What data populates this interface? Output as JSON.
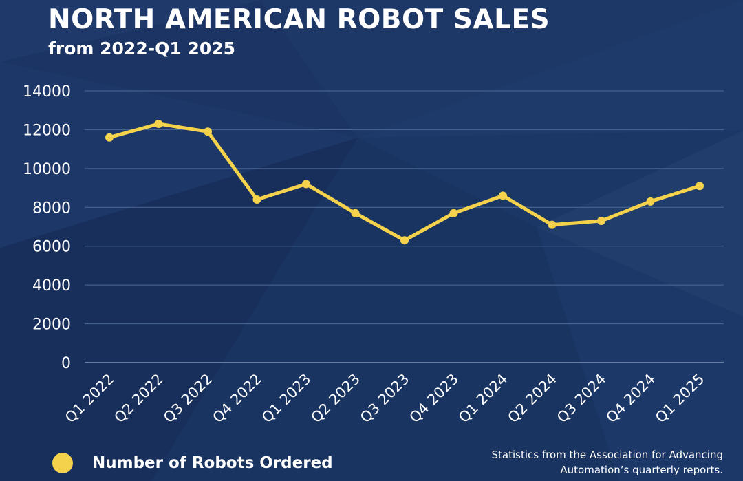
{
  "header": {
    "title": "NORTH AMERICAN ROBOT SALES",
    "subtitle": "from 2022-Q1 2025"
  },
  "footer": {
    "source_line1": "Statistics from the Association for Advancing",
    "source_line2": "Automation’s quarterly reports."
  },
  "colors": {
    "background": "#1b3463",
    "line": "#f5d24b",
    "grid": "#4d6a98",
    "text": "#ffffff"
  },
  "chart_data": {
    "type": "line",
    "title": "NORTH AMERICAN ROBOT SALES",
    "subtitle": "from 2022-Q1 2025",
    "categories": [
      "Q1 2022",
      "Q2 2022",
      "Q3 2022",
      "Q4 2022",
      "Q1 2023",
      "Q2 2023",
      "Q3 2023",
      "Q4 2023",
      "Q1 2024",
      "Q2 2024",
      "Q3 2024",
      "Q4 2024",
      "Q1 2025"
    ],
    "series": [
      {
        "name": "Number of Robots Ordered",
        "values": [
          11600,
          12300,
          11900,
          8400,
          9200,
          7700,
          6300,
          7700,
          8600,
          7100,
          7300,
          8300,
          9100
        ]
      }
    ],
    "ylim": [
      0,
      14000
    ],
    "yticks": [
      0,
      2000,
      4000,
      6000,
      8000,
      10000,
      12000,
      14000
    ],
    "ytick_labels": [
      "0",
      "2000",
      "4000",
      "6000",
      "8000",
      "10000",
      "12000",
      "14000"
    ],
    "grid": true,
    "legend_position": "bottom-left",
    "xlabel": "",
    "ylabel": ""
  }
}
